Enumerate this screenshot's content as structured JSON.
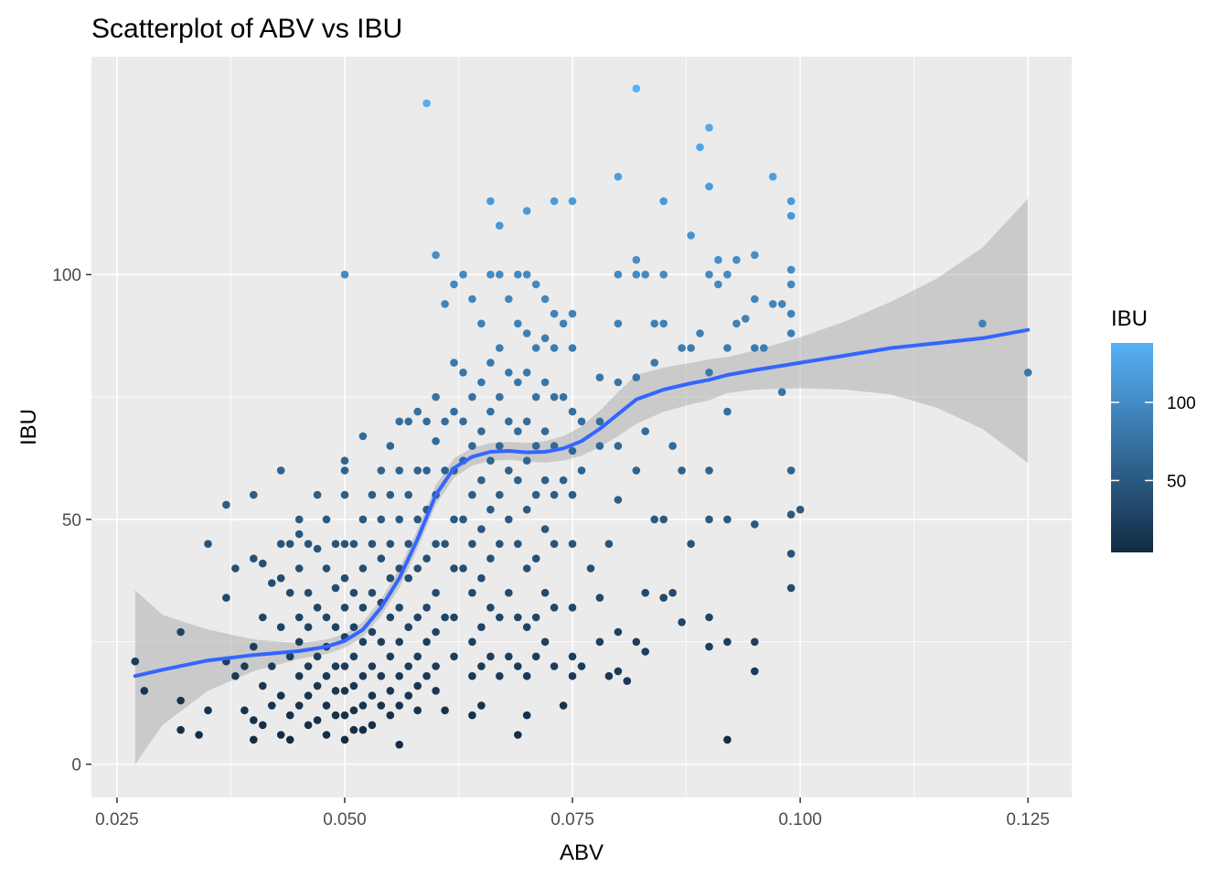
{
  "chart_data": {
    "type": "scatter",
    "title": "Scatterplot of ABV vs IBU",
    "xlabel": "ABV",
    "ylabel": "IBU",
    "xlim": [
      0.0222,
      0.1298
    ],
    "ylim": [
      -6.8,
      144.5
    ],
    "x_ticks": [
      0.025,
      0.05,
      0.075,
      0.1,
      0.125
    ],
    "x_tick_labels": [
      "0.025",
      "0.050",
      "0.075",
      "0.100",
      "0.125"
    ],
    "y_ticks": [
      0,
      50,
      100
    ],
    "y_tick_labels": [
      "0",
      "50",
      "100"
    ],
    "grid": true,
    "legend": {
      "title": "IBU",
      "placement": "right",
      "type": "colorbar",
      "range": [
        4,
        138
      ],
      "ticks": [
        50,
        100
      ],
      "tick_labels": [
        "50",
        "100"
      ],
      "colors": {
        "low": "#132b43",
        "high": "#56b1f7"
      }
    },
    "colors": {
      "panel_background": "#ebebeb",
      "grid": "#ffffff",
      "smooth_line": "#3366ff",
      "confidence_band": "#999999"
    },
    "points": [
      [
        0.027,
        21
      ],
      [
        0.028,
        15
      ],
      [
        0.032,
        27
      ],
      [
        0.032,
        13
      ],
      [
        0.032,
        7
      ],
      [
        0.034,
        6
      ],
      [
        0.035,
        45
      ],
      [
        0.035,
        11
      ],
      [
        0.037,
        53
      ],
      [
        0.037,
        34
      ],
      [
        0.037,
        21
      ],
      [
        0.038,
        40
      ],
      [
        0.038,
        18
      ],
      [
        0.039,
        20
      ],
      [
        0.039,
        11
      ],
      [
        0.04,
        55
      ],
      [
        0.04,
        42
      ],
      [
        0.04,
        24
      ],
      [
        0.04,
        9
      ],
      [
        0.04,
        5
      ],
      [
        0.041,
        41
      ],
      [
        0.041,
        30
      ],
      [
        0.041,
        16
      ],
      [
        0.041,
        8
      ],
      [
        0.042,
        37
      ],
      [
        0.042,
        20
      ],
      [
        0.042,
        12
      ],
      [
        0.043,
        60
      ],
      [
        0.043,
        45
      ],
      [
        0.043,
        38
      ],
      [
        0.043,
        28
      ],
      [
        0.043,
        14
      ],
      [
        0.043,
        6
      ],
      [
        0.044,
        45
      ],
      [
        0.044,
        35
      ],
      [
        0.044,
        22
      ],
      [
        0.044,
        10
      ],
      [
        0.044,
        5
      ],
      [
        0.045,
        50
      ],
      [
        0.045,
        47
      ],
      [
        0.045,
        40
      ],
      [
        0.045,
        30
      ],
      [
        0.045,
        25
      ],
      [
        0.045,
        18
      ],
      [
        0.045,
        12
      ],
      [
        0.046,
        45
      ],
      [
        0.046,
        35
      ],
      [
        0.046,
        28
      ],
      [
        0.046,
        20
      ],
      [
        0.046,
        14
      ],
      [
        0.046,
        8
      ],
      [
        0.047,
        55
      ],
      [
        0.047,
        44
      ],
      [
        0.047,
        32
      ],
      [
        0.047,
        22
      ],
      [
        0.047,
        16
      ],
      [
        0.047,
        9
      ],
      [
        0.048,
        50
      ],
      [
        0.048,
        40
      ],
      [
        0.048,
        30
      ],
      [
        0.048,
        24
      ],
      [
        0.048,
        18
      ],
      [
        0.048,
        12
      ],
      [
        0.048,
        6
      ],
      [
        0.049,
        45
      ],
      [
        0.049,
        36
      ],
      [
        0.049,
        28
      ],
      [
        0.049,
        20
      ],
      [
        0.049,
        15
      ],
      [
        0.049,
        10
      ],
      [
        0.05,
        100
      ],
      [
        0.05,
        62
      ],
      [
        0.05,
        60
      ],
      [
        0.05,
        55
      ],
      [
        0.05,
        45
      ],
      [
        0.05,
        38
      ],
      [
        0.05,
        32
      ],
      [
        0.05,
        26
      ],
      [
        0.05,
        20
      ],
      [
        0.05,
        15
      ],
      [
        0.05,
        10
      ],
      [
        0.05,
        5
      ],
      [
        0.051,
        45
      ],
      [
        0.051,
        35
      ],
      [
        0.051,
        28
      ],
      [
        0.051,
        22
      ],
      [
        0.051,
        16
      ],
      [
        0.051,
        11
      ],
      [
        0.051,
        7
      ],
      [
        0.052,
        67
      ],
      [
        0.052,
        50
      ],
      [
        0.052,
        40
      ],
      [
        0.052,
        32
      ],
      [
        0.052,
        25
      ],
      [
        0.052,
        18
      ],
      [
        0.052,
        12
      ],
      [
        0.052,
        7
      ],
      [
        0.053,
        55
      ],
      [
        0.053,
        45
      ],
      [
        0.053,
        35
      ],
      [
        0.053,
        27
      ],
      [
        0.053,
        20
      ],
      [
        0.053,
        14
      ],
      [
        0.053,
        8
      ],
      [
        0.054,
        60
      ],
      [
        0.054,
        50
      ],
      [
        0.054,
        42
      ],
      [
        0.054,
        33
      ],
      [
        0.054,
        25
      ],
      [
        0.054,
        18
      ],
      [
        0.054,
        12
      ],
      [
        0.055,
        65
      ],
      [
        0.055,
        55
      ],
      [
        0.055,
        45
      ],
      [
        0.055,
        38
      ],
      [
        0.055,
        30
      ],
      [
        0.055,
        22
      ],
      [
        0.055,
        15
      ],
      [
        0.055,
        10
      ],
      [
        0.056,
        70
      ],
      [
        0.056,
        60
      ],
      [
        0.056,
        50
      ],
      [
        0.056,
        40
      ],
      [
        0.056,
        32
      ],
      [
        0.056,
        25
      ],
      [
        0.056,
        18
      ],
      [
        0.056,
        12
      ],
      [
        0.056,
        4
      ],
      [
        0.057,
        70
      ],
      [
        0.057,
        55
      ],
      [
        0.057,
        45
      ],
      [
        0.057,
        38
      ],
      [
        0.057,
        28
      ],
      [
        0.057,
        20
      ],
      [
        0.057,
        14
      ],
      [
        0.058,
        72
      ],
      [
        0.058,
        60
      ],
      [
        0.058,
        50
      ],
      [
        0.058,
        40
      ],
      [
        0.058,
        30
      ],
      [
        0.058,
        22
      ],
      [
        0.058,
        16
      ],
      [
        0.058,
        11
      ],
      [
        0.059,
        135
      ],
      [
        0.059,
        70
      ],
      [
        0.059,
        60
      ],
      [
        0.059,
        52
      ],
      [
        0.059,
        42
      ],
      [
        0.059,
        32
      ],
      [
        0.059,
        25
      ],
      [
        0.059,
        18
      ],
      [
        0.06,
        104
      ],
      [
        0.06,
        75
      ],
      [
        0.06,
        66
      ],
      [
        0.06,
        55
      ],
      [
        0.06,
        45
      ],
      [
        0.06,
        35
      ],
      [
        0.06,
        27
      ],
      [
        0.06,
        20
      ],
      [
        0.06,
        15
      ],
      [
        0.061,
        94
      ],
      [
        0.061,
        70
      ],
      [
        0.061,
        60
      ],
      [
        0.061,
        45
      ],
      [
        0.061,
        30
      ],
      [
        0.061,
        11
      ],
      [
        0.062,
        98
      ],
      [
        0.062,
        82
      ],
      [
        0.062,
        72
      ],
      [
        0.062,
        60
      ],
      [
        0.062,
        50
      ],
      [
        0.062,
        40
      ],
      [
        0.062,
        30
      ],
      [
        0.062,
        22
      ],
      [
        0.063,
        100
      ],
      [
        0.063,
        80
      ],
      [
        0.063,
        70
      ],
      [
        0.063,
        62
      ],
      [
        0.063,
        50
      ],
      [
        0.063,
        40
      ],
      [
        0.064,
        95
      ],
      [
        0.064,
        75
      ],
      [
        0.064,
        65
      ],
      [
        0.064,
        55
      ],
      [
        0.064,
        45
      ],
      [
        0.064,
        35
      ],
      [
        0.064,
        25
      ],
      [
        0.064,
        18
      ],
      [
        0.064,
        10
      ],
      [
        0.065,
        90
      ],
      [
        0.065,
        78
      ],
      [
        0.065,
        68
      ],
      [
        0.065,
        58
      ],
      [
        0.065,
        48
      ],
      [
        0.065,
        38
      ],
      [
        0.065,
        28
      ],
      [
        0.065,
        20
      ],
      [
        0.065,
        12
      ],
      [
        0.066,
        115
      ],
      [
        0.066,
        100
      ],
      [
        0.066,
        82
      ],
      [
        0.066,
        72
      ],
      [
        0.066,
        62
      ],
      [
        0.066,
        52
      ],
      [
        0.066,
        42
      ],
      [
        0.066,
        32
      ],
      [
        0.066,
        22
      ],
      [
        0.067,
        110
      ],
      [
        0.067,
        100
      ],
      [
        0.067,
        85
      ],
      [
        0.067,
        75
      ],
      [
        0.067,
        65
      ],
      [
        0.067,
        55
      ],
      [
        0.067,
        45
      ],
      [
        0.067,
        30
      ],
      [
        0.067,
        18
      ],
      [
        0.068,
        95
      ],
      [
        0.068,
        80
      ],
      [
        0.068,
        70
      ],
      [
        0.068,
        60
      ],
      [
        0.068,
        50
      ],
      [
        0.068,
        35
      ],
      [
        0.068,
        22
      ],
      [
        0.069,
        100
      ],
      [
        0.069,
        90
      ],
      [
        0.069,
        78
      ],
      [
        0.069,
        68
      ],
      [
        0.069,
        58
      ],
      [
        0.069,
        45
      ],
      [
        0.069,
        30
      ],
      [
        0.069,
        20
      ],
      [
        0.069,
        6
      ],
      [
        0.07,
        113
      ],
      [
        0.07,
        100
      ],
      [
        0.07,
        88
      ],
      [
        0.07,
        80
      ],
      [
        0.07,
        70
      ],
      [
        0.07,
        62
      ],
      [
        0.07,
        52
      ],
      [
        0.07,
        40
      ],
      [
        0.07,
        28
      ],
      [
        0.07,
        18
      ],
      [
        0.07,
        10
      ],
      [
        0.071,
        98
      ],
      [
        0.071,
        85
      ],
      [
        0.071,
        75
      ],
      [
        0.071,
        65
      ],
      [
        0.071,
        55
      ],
      [
        0.071,
        42
      ],
      [
        0.071,
        30
      ],
      [
        0.071,
        22
      ],
      [
        0.072,
        95
      ],
      [
        0.072,
        87
      ],
      [
        0.072,
        78
      ],
      [
        0.072,
        68
      ],
      [
        0.072,
        58
      ],
      [
        0.072,
        48
      ],
      [
        0.072,
        35
      ],
      [
        0.072,
        25
      ],
      [
        0.073,
        115
      ],
      [
        0.073,
        92
      ],
      [
        0.073,
        85
      ],
      [
        0.073,
        75
      ],
      [
        0.073,
        65
      ],
      [
        0.073,
        55
      ],
      [
        0.073,
        45
      ],
      [
        0.073,
        32
      ],
      [
        0.073,
        20
      ],
      [
        0.074,
        90
      ],
      [
        0.074,
        75
      ],
      [
        0.074,
        58
      ],
      [
        0.074,
        12
      ],
      [
        0.075,
        115
      ],
      [
        0.075,
        92
      ],
      [
        0.075,
        85
      ],
      [
        0.075,
        72
      ],
      [
        0.075,
        64
      ],
      [
        0.075,
        55
      ],
      [
        0.075,
        45
      ],
      [
        0.075,
        32
      ],
      [
        0.075,
        22
      ],
      [
        0.075,
        18
      ],
      [
        0.076,
        70
      ],
      [
        0.076,
        60
      ],
      [
        0.076,
        20
      ],
      [
        0.077,
        40
      ],
      [
        0.078,
        79
      ],
      [
        0.078,
        70
      ],
      [
        0.078,
        65
      ],
      [
        0.078,
        34
      ],
      [
        0.078,
        25
      ],
      [
        0.079,
        45
      ],
      [
        0.079,
        18
      ],
      [
        0.08,
        120
      ],
      [
        0.08,
        100
      ],
      [
        0.08,
        90
      ],
      [
        0.08,
        78
      ],
      [
        0.08,
        65
      ],
      [
        0.08,
        54
      ],
      [
        0.08,
        27
      ],
      [
        0.08,
        19
      ],
      [
        0.081,
        17
      ],
      [
        0.082,
        138
      ],
      [
        0.082,
        103
      ],
      [
        0.082,
        100
      ],
      [
        0.082,
        79
      ],
      [
        0.082,
        60
      ],
      [
        0.082,
        25
      ],
      [
        0.083,
        100
      ],
      [
        0.083,
        68
      ],
      [
        0.083,
        35
      ],
      [
        0.083,
        23
      ],
      [
        0.084,
        90
      ],
      [
        0.084,
        82
      ],
      [
        0.084,
        50
      ],
      [
        0.085,
        115
      ],
      [
        0.085,
        100
      ],
      [
        0.085,
        90
      ],
      [
        0.085,
        50
      ],
      [
        0.085,
        34
      ],
      [
        0.086,
        65
      ],
      [
        0.086,
        35
      ],
      [
        0.087,
        85
      ],
      [
        0.087,
        60
      ],
      [
        0.087,
        29
      ],
      [
        0.088,
        108
      ],
      [
        0.088,
        85
      ],
      [
        0.088,
        45
      ],
      [
        0.089,
        126
      ],
      [
        0.089,
        88
      ],
      [
        0.09,
        130
      ],
      [
        0.09,
        118
      ],
      [
        0.09,
        100
      ],
      [
        0.09,
        80
      ],
      [
        0.09,
        60
      ],
      [
        0.09,
        50
      ],
      [
        0.09,
        30
      ],
      [
        0.09,
        24
      ],
      [
        0.091,
        103
      ],
      [
        0.091,
        98
      ],
      [
        0.092,
        100
      ],
      [
        0.092,
        85
      ],
      [
        0.092,
        72
      ],
      [
        0.092,
        50
      ],
      [
        0.092,
        25
      ],
      [
        0.092,
        5
      ],
      [
        0.093,
        103
      ],
      [
        0.093,
        90
      ],
      [
        0.094,
        91
      ],
      [
        0.095,
        104
      ],
      [
        0.095,
        95
      ],
      [
        0.095,
        85
      ],
      [
        0.095,
        49
      ],
      [
        0.095,
        25
      ],
      [
        0.095,
        19
      ],
      [
        0.096,
        85
      ],
      [
        0.097,
        120
      ],
      [
        0.097,
        94
      ],
      [
        0.098,
        76
      ],
      [
        0.098,
        94
      ],
      [
        0.099,
        115
      ],
      [
        0.099,
        112
      ],
      [
        0.099,
        101
      ],
      [
        0.099,
        98
      ],
      [
        0.099,
        92
      ],
      [
        0.099,
        88
      ],
      [
        0.099,
        60
      ],
      [
        0.099,
        51
      ],
      [
        0.099,
        43
      ],
      [
        0.099,
        36
      ],
      [
        0.1,
        52
      ],
      [
        0.12,
        90
      ],
      [
        0.125,
        80
      ]
    ],
    "smooth": {
      "x": [
        0.027,
        0.03,
        0.035,
        0.04,
        0.045,
        0.048,
        0.05,
        0.052,
        0.054,
        0.056,
        0.058,
        0.06,
        0.062,
        0.064,
        0.066,
        0.068,
        0.07,
        0.072,
        0.074,
        0.076,
        0.078,
        0.08,
        0.082,
        0.085,
        0.088,
        0.09,
        0.092,
        0.095,
        0.1,
        0.105,
        0.11,
        0.115,
        0.12,
        0.125
      ],
      "y": [
        18,
        19.3,
        21.2,
        22.3,
        23.1,
        24,
        25.2,
        27.5,
        32,
        38,
        46,
        55,
        60.5,
        62.8,
        63.8,
        64,
        63.7,
        63.8,
        64.5,
        66,
        68.5,
        71.5,
        74.5,
        76.5,
        77.8,
        78.5,
        79.5,
        80.5,
        82,
        83.5,
        85,
        86,
        87,
        88.7
      ],
      "lower": [
        0,
        8,
        15,
        19,
        21.5,
        22.5,
        23.8,
        26,
        30.3,
        36,
        44,
        53,
        58.5,
        61,
        62,
        62.2,
        61.8,
        61.6,
        62,
        63,
        64.8,
        67,
        69.5,
        72,
        73.5,
        74.3,
        75.8,
        76.5,
        76.8,
        76.5,
        75.5,
        72.8,
        68.5,
        61.5
      ],
      "upper": [
        35.5,
        30.5,
        27.5,
        25.5,
        24.7,
        25.5,
        26.6,
        29,
        33.7,
        40,
        48,
        57,
        62.5,
        64.6,
        65.6,
        65.8,
        65.6,
        66,
        67,
        69,
        72.2,
        76,
        79.5,
        81,
        82,
        82.7,
        83.2,
        84.5,
        87.2,
        90.5,
        94.5,
        99.2,
        105.5,
        115.5
      ]
    }
  }
}
